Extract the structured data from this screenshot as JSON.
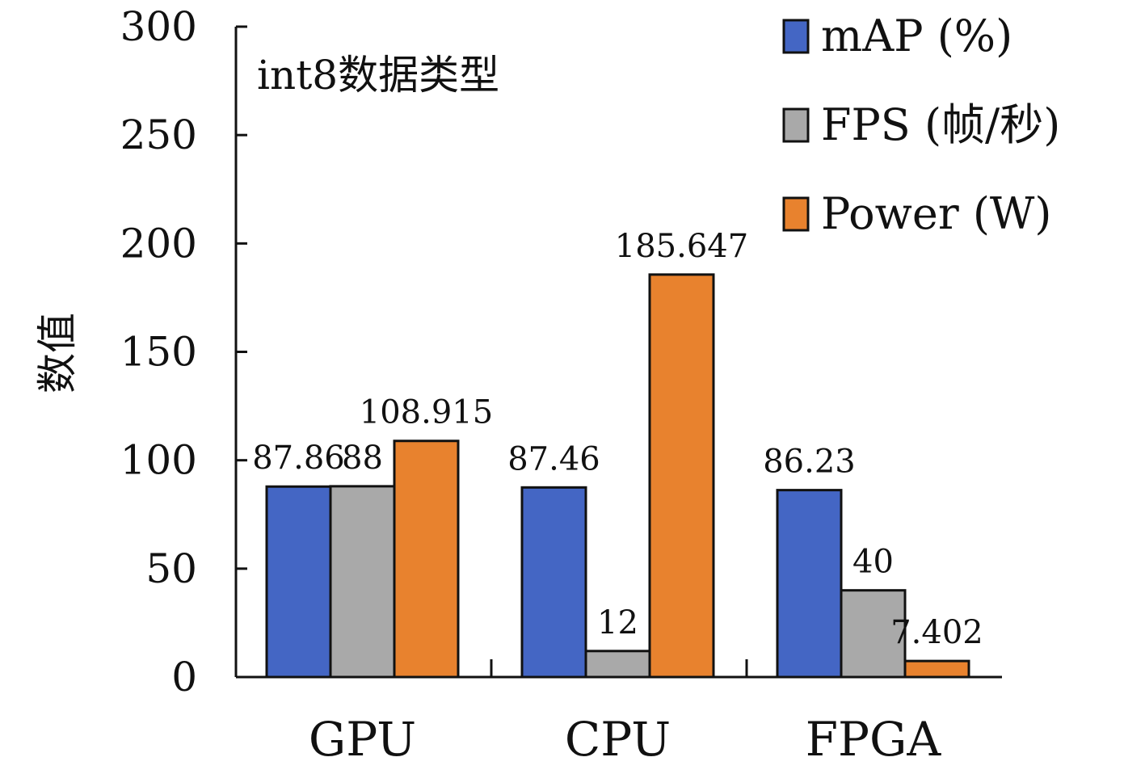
{
  "chart_data": {
    "type": "bar",
    "title": "",
    "annotation": "int8数据类型",
    "xlabel": "",
    "ylabel": "数值",
    "ylim": [
      0,
      300
    ],
    "yticks": [
      0,
      50,
      100,
      150,
      200,
      250,
      300
    ],
    "categories": [
      "GPU",
      "CPU",
      "FPGA"
    ],
    "series": [
      {
        "name": "mAP (%)",
        "color": "#4466c4",
        "values": [
          87.86,
          87.46,
          86.23
        ],
        "labels": [
          "87.86",
          "87.46",
          "86.23"
        ]
      },
      {
        "name": "FPS (帧/秒)",
        "color": "#a9a9a9",
        "values": [
          88,
          12,
          40
        ],
        "labels": [
          "88",
          "12",
          "40"
        ]
      },
      {
        "name": "Power (W)",
        "color": "#e8822e",
        "values": [
          108.915,
          185.647,
          7.402
        ],
        "labels": [
          "108.915",
          "185.647",
          "7.402"
        ]
      }
    ],
    "legend_position": "top-right",
    "grid": false
  }
}
